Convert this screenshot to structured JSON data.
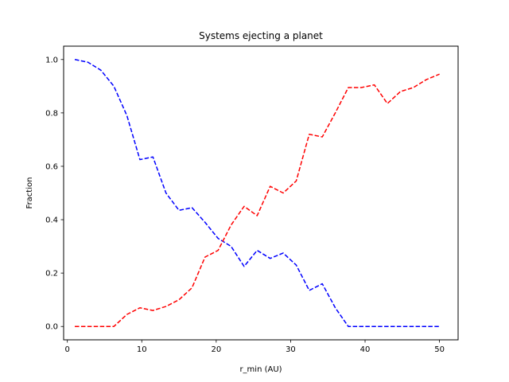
{
  "chart_data": {
    "type": "line",
    "title": "Systems ejecting a planet",
    "xlabel": "r_min (AU)",
    "ylabel": "Fraction",
    "xlim": [
      -0.5,
      52.5
    ],
    "ylim": [
      -0.05,
      1.05
    ],
    "xticks": [
      0,
      10,
      20,
      30,
      40,
      50
    ],
    "yticks": [
      0.0,
      0.2,
      0.4,
      0.6,
      0.8,
      1.0
    ],
    "xtick_labels": [
      "0",
      "10",
      "20",
      "30",
      "40",
      "50"
    ],
    "ytick_labels": [
      "0.0",
      "0.2",
      "0.4",
      "0.6",
      "0.8",
      "1.0"
    ],
    "grid": false,
    "x": [
      1.0,
      2.75,
      4.5,
      6.25,
      8.0,
      9.75,
      11.5,
      13.25,
      15.0,
      16.75,
      18.5,
      20.25,
      22.0,
      23.75,
      25.5,
      27.25,
      29.0,
      30.75,
      32.5,
      34.25,
      36.0,
      37.75,
      39.5,
      41.25,
      43.0,
      44.75,
      46.5,
      48.25,
      50.0
    ],
    "series": [
      {
        "color": "#0000ff",
        "linestyle": "dashed",
        "values": [
          1.0,
          0.99,
          0.96,
          0.9,
          0.79,
          0.625,
          0.635,
          0.5,
          0.435,
          0.445,
          0.39,
          0.33,
          0.3,
          0.225,
          0.285,
          0.255,
          0.275,
          0.23,
          0.135,
          0.16,
          0.07,
          0.0,
          0.0,
          0.0,
          0.0,
          0.0,
          0.0,
          0.0,
          0.0
        ]
      },
      {
        "color": "#ff0000",
        "linestyle": "dashed",
        "values": [
          0.0,
          0.0,
          0.0,
          0.0,
          0.045,
          0.07,
          0.06,
          0.075,
          0.1,
          0.145,
          0.26,
          0.285,
          0.38,
          0.45,
          0.415,
          0.525,
          0.5,
          0.545,
          0.72,
          0.71,
          0.8,
          0.895,
          0.895,
          0.905,
          0.835,
          0.88,
          0.895,
          0.925,
          0.945
        ]
      }
    ]
  }
}
